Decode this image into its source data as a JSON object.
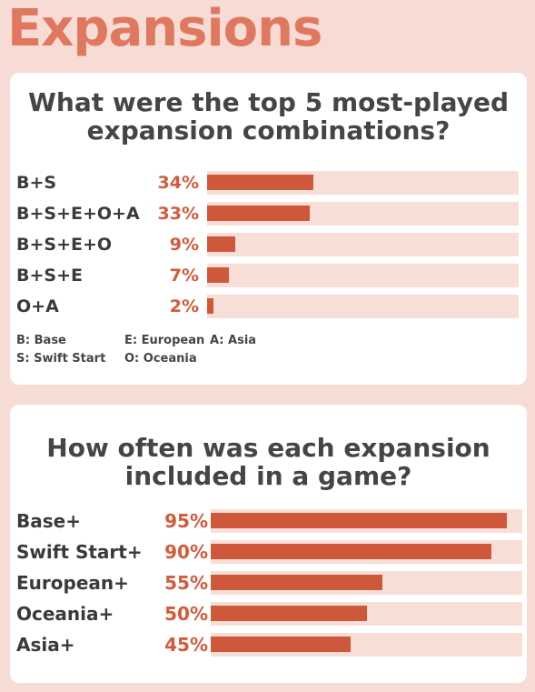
{
  "title": "Expansions",
  "chart_data": [
    {
      "type": "bar",
      "orientation": "horizontal",
      "title": "What were the top 5 most-played expansion combinations?",
      "categories": [
        "B+S",
        "B+S+E+O+A",
        "B+S+E+O",
        "B+S+E",
        "O+A"
      ],
      "values": [
        34,
        33,
        9,
        7,
        2
      ],
      "value_labels": [
        "34%",
        "33%",
        "9%",
        "7%",
        "2%"
      ],
      "xlim": [
        0,
        100
      ],
      "legend": [
        {
          "text": "B: Base"
        },
        {
          "text": "E: European"
        },
        {
          "text": "A: Asia"
        },
        {
          "text": "S: Swift Start"
        },
        {
          "text": "O: Oceania"
        }
      ]
    },
    {
      "type": "bar",
      "orientation": "horizontal",
      "title": "How often was each expansion included in a game?",
      "categories": [
        "Base+",
        "Swift Start+",
        "European+",
        "Oceania+",
        "Asia+"
      ],
      "values": [
        95,
        90,
        55,
        50,
        45
      ],
      "value_labels": [
        "95%",
        "90%",
        "55%",
        "50%",
        "45%"
      ],
      "xlim": [
        0,
        100
      ]
    }
  ],
  "colors": {
    "background": "#f6dcd4",
    "title": "#e07860",
    "bar": "#d0583a",
    "track": "#f7dfd7",
    "value_text": "#d55a3a"
  }
}
